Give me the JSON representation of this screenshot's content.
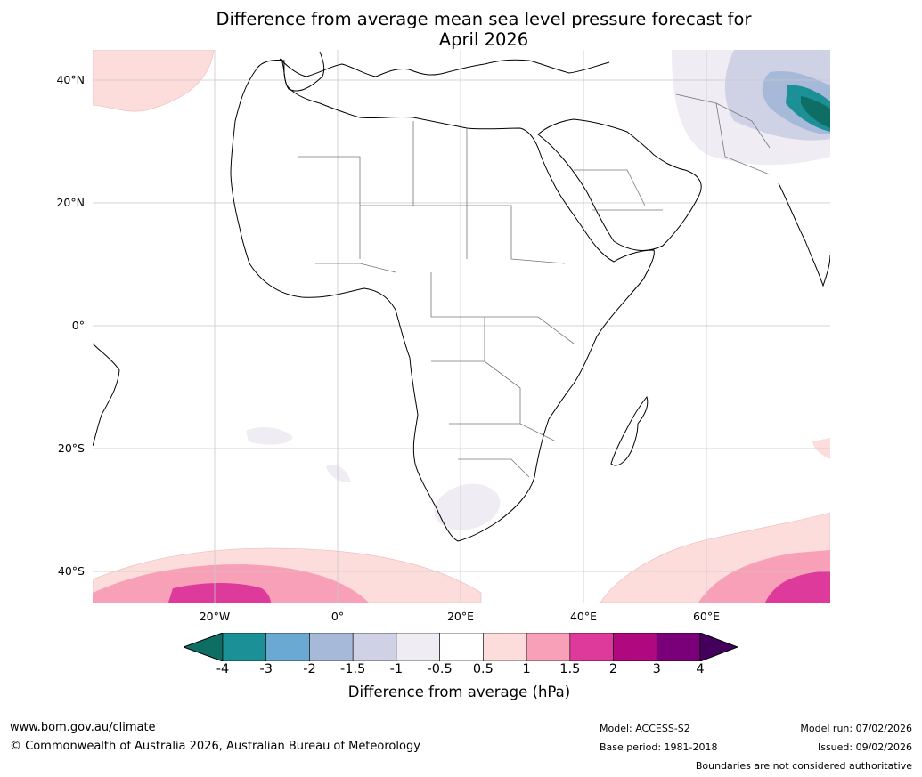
{
  "title_line1": "Difference from average mean sea level pressure forecast for",
  "title_line2": "April 2026",
  "lat_labels": [
    "40°N",
    "20°N",
    "0°",
    "20°S",
    "40°S"
  ],
  "lon_labels": [
    "20°W",
    "0°",
    "20°E",
    "40°E",
    "60°E"
  ],
  "colorbar": {
    "ticks": [
      "-4",
      "-3",
      "-2",
      "-1.5",
      "-1",
      "-0.5",
      "0.5",
      "1",
      "1.5",
      "2",
      "3",
      "4"
    ],
    "colors": [
      "#0e6e64",
      "#1c9097",
      "#6aa9d2",
      "#a7b9d8",
      "#cfd1e5",
      "#efecf3",
      "#ffffff",
      "#fddcdc",
      "#f8a0b8",
      "#dd3a9b",
      "#b0097f",
      "#7a007a",
      "#44005c"
    ],
    "label": "Difference from average (hPa)"
  },
  "footer": {
    "website": "www.bom.gov.au/climate",
    "copyright": "© Commonwealth of Australia 2026, Australian Bureau of Meteorology",
    "model": "Model: ACCESS-S2",
    "base_period": "Base period: 1981-2018",
    "model_run": "Model run: 07/02/2026",
    "issued": "Issued: 09/02/2026",
    "disclaimer": "Boundaries are not considered authoritative"
  }
}
